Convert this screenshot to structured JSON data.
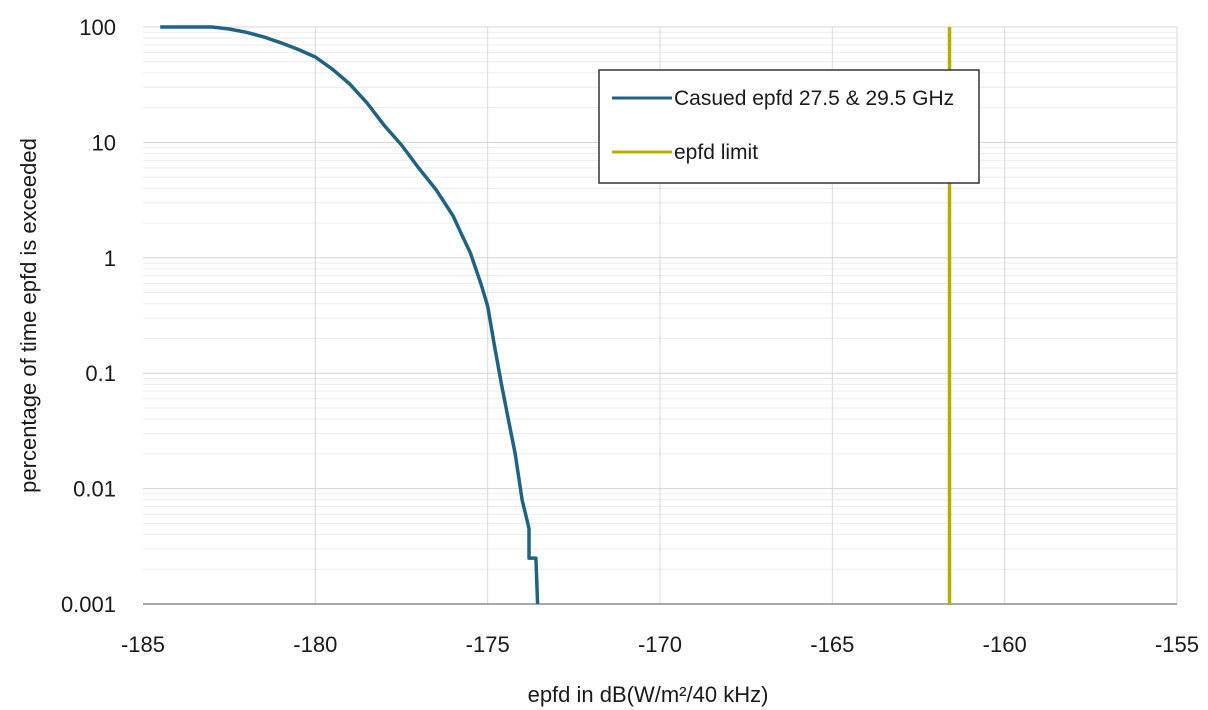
{
  "chart_data": {
    "type": "line",
    "title": "",
    "xlabel": "epfd in dB(W/m²/40 kHz)",
    "ylabel": "percentage of time epfd is exceeded",
    "xlim": [
      -185,
      -155
    ],
    "ylim": [
      0.001,
      100
    ],
    "yscale": "log",
    "x_ticks": [
      "-185",
      "-180",
      "-175",
      "-170",
      "-165",
      "-160",
      "-155"
    ],
    "y_ticks": [
      "100",
      "10",
      "1",
      "0.1",
      "0.01",
      "0.001"
    ],
    "grid": true,
    "legend_position": "top-right",
    "series": [
      {
        "name": "Casued epfd 27.5 & 29.5 GHz",
        "color": "#1f6382",
        "x": [
          -184.5,
          -183.5,
          -183,
          -182.5,
          -182,
          -181.5,
          -181,
          -180.5,
          -180,
          -179.5,
          -179,
          -178.5,
          -178,
          -177.5,
          -177,
          -176.5,
          -176,
          -175.8,
          -175.5,
          -175.2,
          -175,
          -174.8,
          -174.6,
          -174.4,
          -174.2,
          -174,
          -173.9,
          -173.8,
          -173.8,
          -173.6,
          -173.55
        ],
        "y": [
          100,
          100,
          100,
          96,
          90,
          82,
          73,
          64,
          55,
          43,
          32,
          22,
          14,
          9.5,
          6,
          3.9,
          2.3,
          1.7,
          1.1,
          0.6,
          0.38,
          0.17,
          0.08,
          0.04,
          0.02,
          0.008,
          0.006,
          0.0045,
          0.0025,
          0.0025,
          0.001
        ]
      },
      {
        "name": "epfd limit",
        "color": "#b8ac00",
        "x": [
          -161.6,
          -161.6
        ],
        "y": [
          100,
          0.001
        ]
      }
    ]
  }
}
